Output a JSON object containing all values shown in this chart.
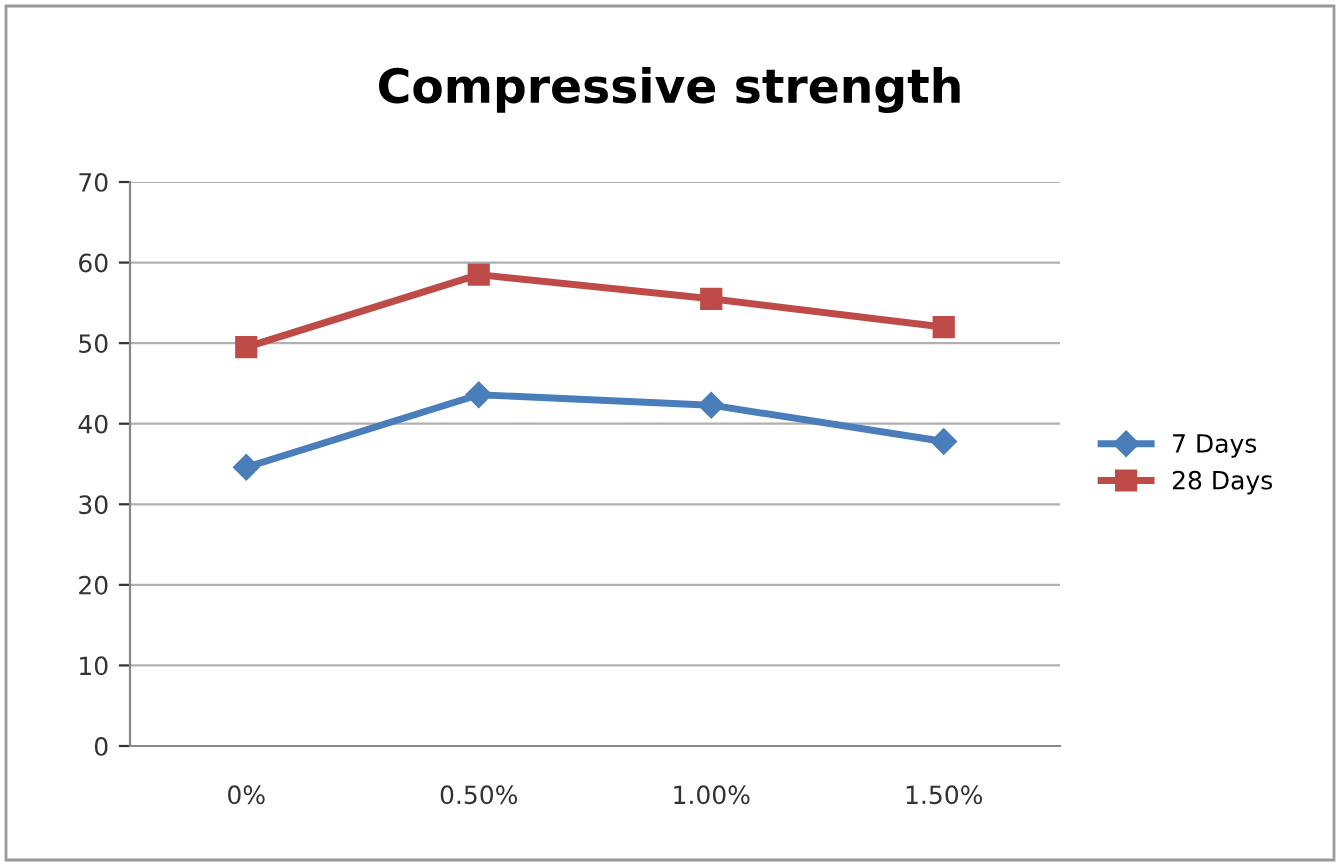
{
  "chart_data": {
    "type": "line",
    "title": "Compressive strength",
    "categories": [
      "0%",
      "0.50%",
      "1.00%",
      "1.50%"
    ],
    "series": [
      {
        "name": "7 Days",
        "color": "#4a7ebb",
        "marker": "diamond",
        "values": [
          34.6,
          43.6,
          42.3,
          37.8
        ]
      },
      {
        "name": "28 Days",
        "color": "#be4b48",
        "marker": "square",
        "values": [
          49.5,
          58.5,
          55.5,
          52
        ]
      }
    ],
    "ylim": [
      0,
      70
    ],
    "yticks": [
      0,
      10,
      20,
      30,
      40,
      50,
      60,
      70
    ],
    "grid": "y",
    "legend": "right",
    "line_style": "solid"
  }
}
